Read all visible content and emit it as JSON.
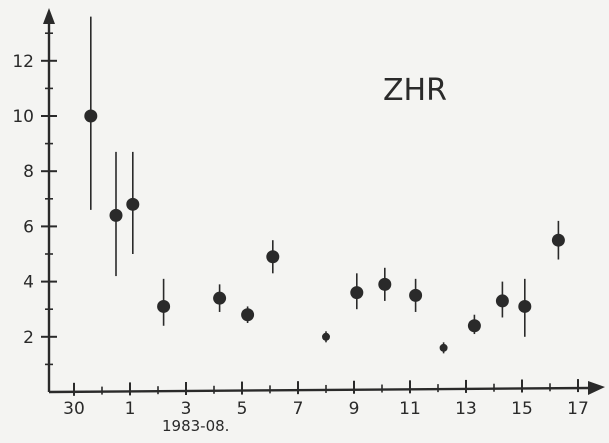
{
  "chart_data": {
    "type": "scatter",
    "title": "ZHR",
    "xlabel": "1983-08.",
    "ylabel": "",
    "x_ticks": [
      30,
      1,
      3,
      5,
      7,
      9,
      11,
      13,
      15,
      17
    ],
    "y_ticks": [
      2,
      4,
      6,
      8,
      10,
      12
    ],
    "ylim": [
      0,
      13.5
    ],
    "grid": false,
    "error_bars": true,
    "points": [
      {
        "x": "07-30.6",
        "y": 10.0,
        "yerr_low": 6.6,
        "yerr_high": 13.6
      },
      {
        "x": "07-31.5",
        "y": 6.4,
        "yerr_low": 4.2,
        "yerr_high": 8.7
      },
      {
        "x": "08-01.1",
        "y": 6.8,
        "yerr_low": 5.0,
        "yerr_high": 8.7
      },
      {
        "x": "08-02.2",
        "y": 3.1,
        "yerr_low": 2.4,
        "yerr_high": 4.1
      },
      {
        "x": "08-04.2",
        "y": 3.4,
        "yerr_low": 2.9,
        "yerr_high": 3.9
      },
      {
        "x": "08-05.2",
        "y": 2.8,
        "yerr_low": 2.5,
        "yerr_high": 3.1
      },
      {
        "x": "08-06.1",
        "y": 4.9,
        "yerr_low": 4.3,
        "yerr_high": 5.5
      },
      {
        "x": "08-08.0",
        "y": 2.0,
        "yerr_low": 1.8,
        "yerr_high": 2.2
      },
      {
        "x": "08-09.1",
        "y": 3.6,
        "yerr_low": 3.0,
        "yerr_high": 4.3
      },
      {
        "x": "08-10.1",
        "y": 3.9,
        "yerr_low": 3.3,
        "yerr_high": 4.5
      },
      {
        "x": "08-11.2",
        "y": 3.5,
        "yerr_low": 2.9,
        "yerr_high": 4.1
      },
      {
        "x": "08-12.2",
        "y": 1.6,
        "yerr_low": 1.4,
        "yerr_high": 1.8
      },
      {
        "x": "08-13.3",
        "y": 2.4,
        "yerr_low": 2.1,
        "yerr_high": 2.8
      },
      {
        "x": "08-14.3",
        "y": 3.3,
        "yerr_low": 2.7,
        "yerr_high": 4.0
      },
      {
        "x": "08-15.1",
        "y": 3.1,
        "yerr_low": 2.0,
        "yerr_high": 4.1
      },
      {
        "x": "08-16.3",
        "y": 5.5,
        "yerr_low": 4.8,
        "yerr_high": 6.2
      }
    ]
  },
  "colors": {
    "ink": "#2a2a2a",
    "background": "#f4f4f2"
  }
}
